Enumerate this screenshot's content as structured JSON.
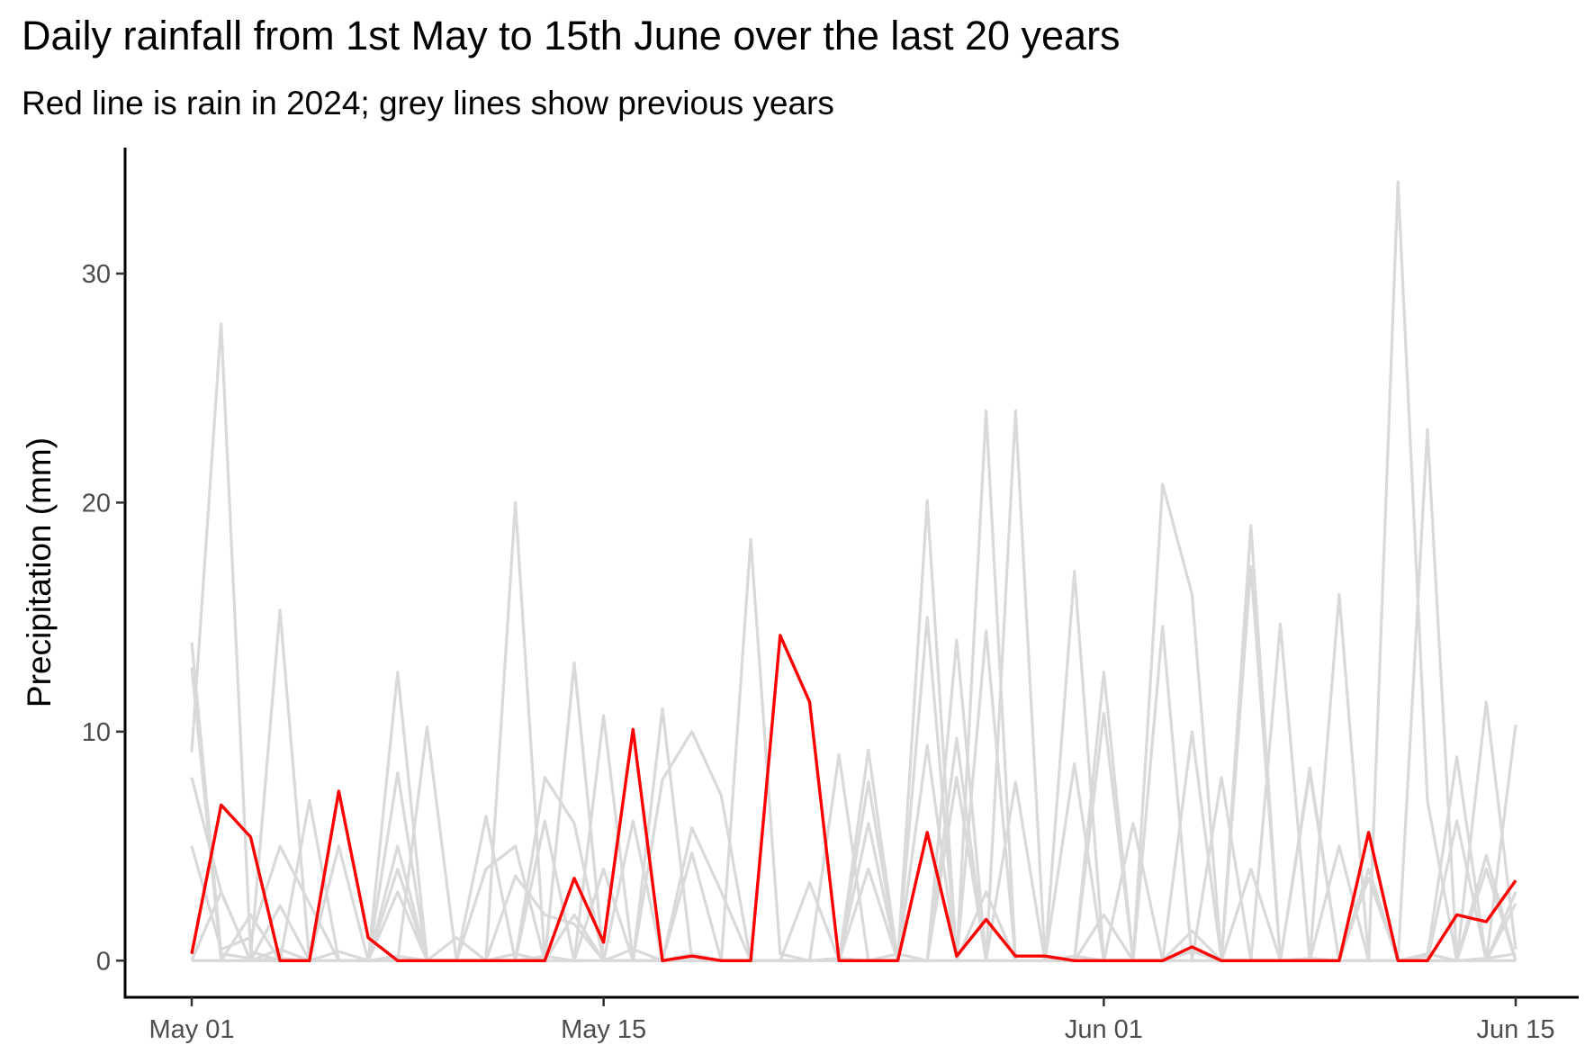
{
  "chart_data": {
    "type": "line",
    "title": "Daily rainfall from 1st May to 15th June over the last 20 years",
    "subtitle": "Red line is rain in 2024; grey lines show previous years",
    "xlabel": "",
    "ylabel": "Precipitation (mm)",
    "x": [
      "2024-05-01",
      "2024-05-02",
      "2024-05-03",
      "2024-05-04",
      "2024-05-05",
      "2024-05-06",
      "2024-05-07",
      "2024-05-08",
      "2024-05-09",
      "2024-05-10",
      "2024-05-11",
      "2024-05-12",
      "2024-05-13",
      "2024-05-14",
      "2024-05-15",
      "2024-05-16",
      "2024-05-17",
      "2024-05-18",
      "2024-05-19",
      "2024-05-20",
      "2024-05-21",
      "2024-05-22",
      "2024-05-23",
      "2024-05-24",
      "2024-05-25",
      "2024-05-26",
      "2024-05-27",
      "2024-05-28",
      "2024-05-29",
      "2024-05-30",
      "2024-05-31",
      "2024-06-01",
      "2024-06-02",
      "2024-06-03",
      "2024-06-04",
      "2024-06-05",
      "2024-06-06",
      "2024-06-07",
      "2024-06-08",
      "2024-06-09",
      "2024-06-10",
      "2024-06-11",
      "2024-06-12",
      "2024-06-13",
      "2024-06-14",
      "2024-06-15"
    ],
    "x_ticks": [
      {
        "label": "May 01",
        "date": "2024-05-01"
      },
      {
        "label": "May 15",
        "date": "2024-05-15"
      },
      {
        "label": "Jun 01",
        "date": "2024-06-01"
      },
      {
        "label": "Jun 15",
        "date": "2024-06-15"
      }
    ],
    "y_ticks": [
      0,
      10,
      20,
      30
    ],
    "ylim": [
      -1.6,
      35.5
    ],
    "grid": false,
    "highlight_color": "#ff0000",
    "background_color": "#d9d9d9",
    "highlight_series": {
      "values": [
        0.3,
        6.8,
        5.4,
        0,
        0,
        7.4,
        1,
        0,
        0,
        0,
        0,
        0,
        0,
        3.6,
        0.8,
        10.1,
        0,
        0.2,
        0,
        0,
        14.2,
        11.3,
        0,
        0,
        0,
        5.6,
        0.2,
        1.8,
        0.2,
        0.2,
        0,
        0,
        0,
        0,
        0.6,
        0,
        0,
        0,
        0,
        0,
        5.6,
        0,
        0,
        2,
        1.7,
        3.5
      ]
    },
    "background_series": [
      {
        "values": [
          13.9,
          0.3,
          0.1,
          15.3,
          0,
          0.4,
          0,
          0.2,
          0,
          1.0,
          0,
          0.3,
          0,
          13.0,
          0,
          0.5,
          0,
          0,
          0,
          18.4,
          0.3,
          0,
          0.1,
          0,
          0.3,
          0,
          0,
          24.0,
          0,
          0,
          0.2,
          0,
          0,
          0,
          0.4,
          0,
          17.2,
          0,
          0.1,
          0,
          0,
          0,
          0.3,
          0,
          0.1,
          0.3
        ]
      },
      {
        "values": [
          9.1,
          27.8,
          0.4,
          0,
          0,
          0,
          0,
          12.6,
          0,
          0,
          0,
          20.0,
          0,
          0,
          10.7,
          0,
          0,
          0.3,
          0,
          0,
          0,
          0,
          0,
          0,
          0,
          20.1,
          0,
          0,
          0,
          0,
          0,
          0,
          0,
          20.8,
          16.0,
          0,
          0,
          0,
          0,
          0,
          0,
          34.0,
          7.0,
          0,
          11.3,
          0.5
        ]
      },
      {
        "values": [
          12.8,
          0,
          0,
          0.5,
          0,
          0,
          0,
          0,
          10.2,
          0,
          0,
          0,
          0.2,
          0,
          0,
          0,
          11.0,
          0,
          0,
          0,
          0,
          0,
          0,
          0,
          0,
          15.0,
          0,
          0,
          0,
          0,
          17.0,
          0,
          0,
          0,
          0,
          0,
          19.0,
          0,
          0,
          16.0,
          0,
          0,
          23.2,
          0,
          0,
          10.3
        ]
      },
      {
        "values": [
          8.0,
          3.0,
          0,
          0.1,
          0,
          0,
          0,
          0,
          0,
          0,
          0,
          0,
          0,
          13.0,
          0,
          0,
          0,
          0,
          0,
          0,
          0,
          0,
          0,
          9.2,
          0,
          0,
          14.0,
          0,
          24.0,
          0,
          0,
          12.6,
          0,
          14.6,
          0,
          0,
          0,
          14.7,
          0,
          0,
          0,
          0,
          0.2,
          8.9,
          0,
          0
        ]
      },
      {
        "values": [
          5.0,
          0.5,
          1.0,
          5.0,
          2.5,
          0,
          0,
          8.2,
          0,
          0,
          0,
          0,
          6.1,
          0,
          0,
          6.1,
          0,
          0,
          0,
          0,
          0,
          0,
          9.0,
          0,
          0,
          9.4,
          0,
          14.4,
          0,
          0,
          0,
          10.8,
          0,
          0,
          10.0,
          0,
          0,
          0,
          8.2,
          0,
          0,
          0,
          0,
          6.1,
          0,
          3.0
        ]
      },
      {
        "values": [
          0,
          3.0,
          0,
          0,
          7.0,
          0,
          0,
          0,
          0,
          0,
          6.3,
          0,
          8.0,
          6.0,
          0,
          0,
          7.9,
          10.0,
          7.2,
          0,
          0,
          0,
          0,
          7.8,
          0,
          0,
          9.7,
          0,
          0,
          0,
          8.6,
          0,
          0,
          0,
          0,
          8.0,
          0,
          0,
          8.4,
          0,
          0,
          0,
          0,
          0,
          4.6,
          0
        ]
      },
      {
        "values": [
          0,
          0,
          0,
          0,
          0,
          5.0,
          0,
          4.0,
          0,
          0,
          4.0,
          5.0,
          0,
          0,
          4.0,
          0,
          0,
          5.8,
          3.0,
          0,
          0,
          0,
          0,
          6.0,
          0,
          0,
          8.0,
          0,
          7.8,
          0,
          0,
          0,
          6.0,
          0,
          0,
          0,
          4.0,
          0,
          0,
          5.0,
          0,
          0,
          0,
          0,
          0,
          2.5
        ]
      },
      {
        "values": [
          0,
          0,
          2.0,
          0,
          0,
          0,
          0,
          5.0,
          0,
          0,
          0,
          0,
          0,
          2.0,
          0,
          0,
          0,
          0,
          0,
          0,
          0,
          3.4,
          0,
          0,
          0,
          0,
          0,
          0,
          0,
          0,
          0,
          0,
          0,
          0,
          0,
          0,
          0,
          0,
          0,
          0,
          4.0,
          0,
          0,
          0,
          0,
          0
        ]
      },
      {
        "values": [
          0,
          0,
          0,
          2.4,
          0,
          0,
          0,
          3.0,
          0,
          0,
          0,
          3.7,
          2.0,
          1.6,
          0,
          0,
          0,
          4.7,
          0,
          0,
          0,
          0,
          0,
          4.0,
          0,
          0,
          0,
          3.0,
          0,
          0,
          0,
          2.0,
          0,
          0,
          1.3,
          0,
          0,
          0,
          0,
          0,
          3.6,
          0,
          0,
          0,
          4.0,
          0
        ]
      },
      {
        "values": [
          0,
          0,
          0,
          0,
          0,
          0,
          0,
          0,
          0,
          0,
          0,
          0,
          0,
          0,
          0,
          0,
          0,
          0,
          0,
          0,
          0,
          0,
          0,
          0,
          0,
          0,
          0,
          0,
          0,
          0,
          0,
          0,
          0,
          0,
          0,
          0,
          0,
          0,
          0,
          0,
          0,
          0,
          0,
          0,
          0,
          0
        ]
      }
    ]
  }
}
